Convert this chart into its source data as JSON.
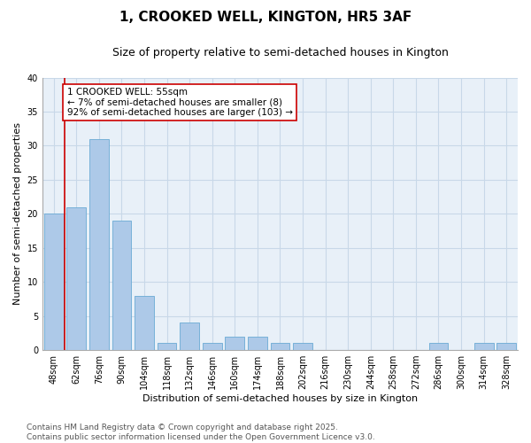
{
  "title": "1, CROOKED WELL, KINGTON, HR5 3AF",
  "subtitle": "Size of property relative to semi-detached houses in Kington",
  "xlabel": "Distribution of semi-detached houses by size in Kington",
  "ylabel": "Number of semi-detached properties",
  "categories": [
    "48sqm",
    "62sqm",
    "76sqm",
    "90sqm",
    "104sqm",
    "118sqm",
    "132sqm",
    "146sqm",
    "160sqm",
    "174sqm",
    "188sqm",
    "202sqm",
    "216sqm",
    "230sqm",
    "244sqm",
    "258sqm",
    "272sqm",
    "286sqm",
    "300sqm",
    "314sqm",
    "328sqm"
  ],
  "values": [
    20,
    21,
    31,
    19,
    8,
    1,
    4,
    1,
    2,
    2,
    1,
    1,
    0,
    0,
    0,
    0,
    0,
    1,
    0,
    1,
    1
  ],
  "bar_color": "#adc9e8",
  "bar_edgecolor": "#6aaad4",
  "highlight_color": "#cc0000",
  "annotation_text": "1 CROOKED WELL: 55sqm\n← 7% of semi-detached houses are smaller (8)\n92% of semi-detached houses are larger (103) →",
  "annotation_boxcolor": "white",
  "annotation_edgecolor": "#cc0000",
  "ylim": [
    0,
    40
  ],
  "yticks": [
    0,
    5,
    10,
    15,
    20,
    25,
    30,
    35,
    40
  ],
  "grid_color": "#c8d8e8",
  "bg_color": "#e8f0f8",
  "footer_text": "Contains HM Land Registry data © Crown copyright and database right 2025.\nContains public sector information licensed under the Open Government Licence v3.0.",
  "title_fontsize": 11,
  "subtitle_fontsize": 9,
  "axis_label_fontsize": 8,
  "tick_fontsize": 7,
  "annotation_fontsize": 7.5,
  "footer_fontsize": 6.5
}
